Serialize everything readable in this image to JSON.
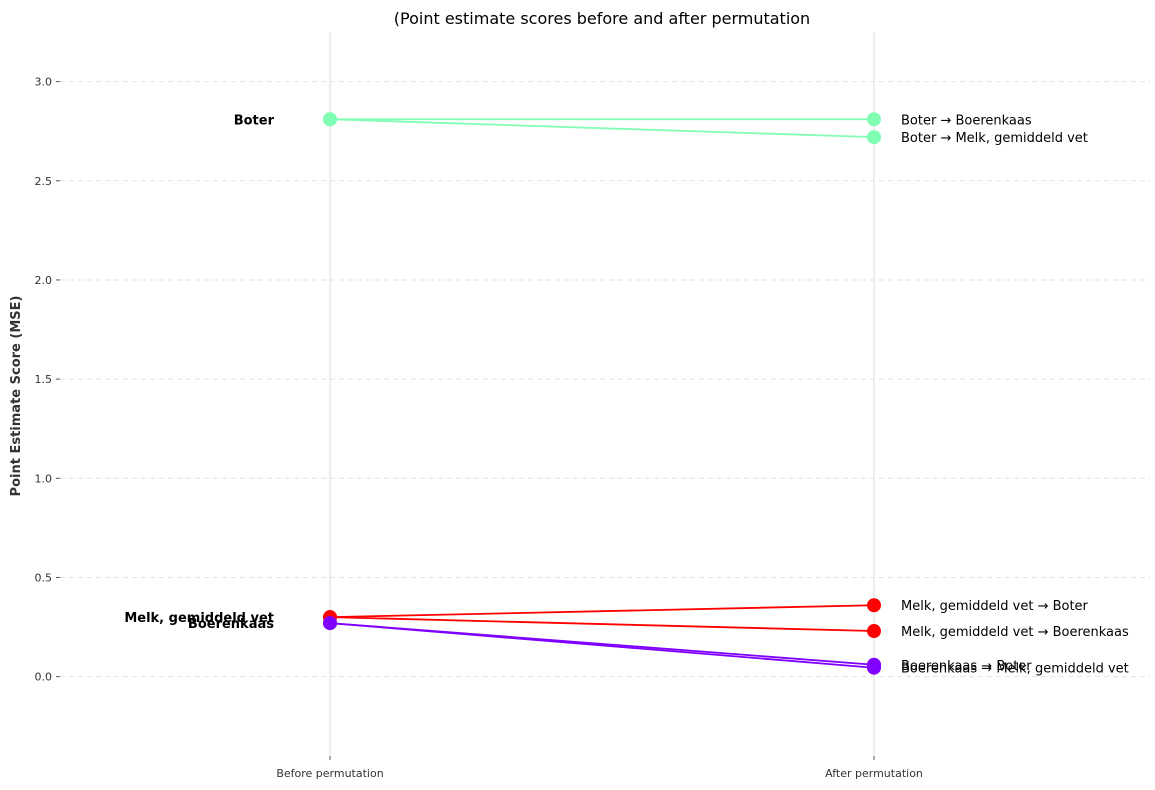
{
  "chart_data": {
    "type": "line",
    "title": "(Point estimate scores before and after permutation",
    "xlabel": "",
    "ylabel": "Point Estimate Score (MSE)",
    "categories": [
      "Before permutation",
      "After permutation"
    ],
    "ylim": [
      -0.4,
      3.25
    ],
    "yticks": [
      "0.0",
      "0.5",
      "1.0",
      "1.5",
      "2.0",
      "2.5",
      "3.0"
    ],
    "grid": "horizontal dashed",
    "before_labels": [
      {
        "text": "Boter",
        "value": 2.81
      },
      {
        "text": "Melk, gemiddeld vet",
        "value": 0.3
      },
      {
        "text": "Boerenkaas",
        "value": 0.27
      }
    ],
    "series": [
      {
        "name": "Boter → Boerenkaas",
        "values": [
          2.81,
          2.81
        ],
        "color": "#80ffb4"
      },
      {
        "name": "Boter → Melk, gemiddeld vet",
        "values": [
          2.81,
          2.72
        ],
        "color": "#80ffb4"
      },
      {
        "name": "Melk, gemiddeld vet → Boter",
        "values": [
          0.3,
          0.36
        ],
        "color": "#ff0000"
      },
      {
        "name": "Melk, gemiddeld vet → Boerenkaas",
        "values": [
          0.3,
          0.23
        ],
        "color": "#ff0000"
      },
      {
        "name": "Boerenkaas → Boter",
        "values": [
          0.27,
          0.06
        ],
        "color": "#8000ff"
      },
      {
        "name": "Boerenkaas → Melk, gemiddeld vet",
        "values": [
          0.27,
          0.045
        ],
        "color": "#8000ff"
      }
    ]
  }
}
